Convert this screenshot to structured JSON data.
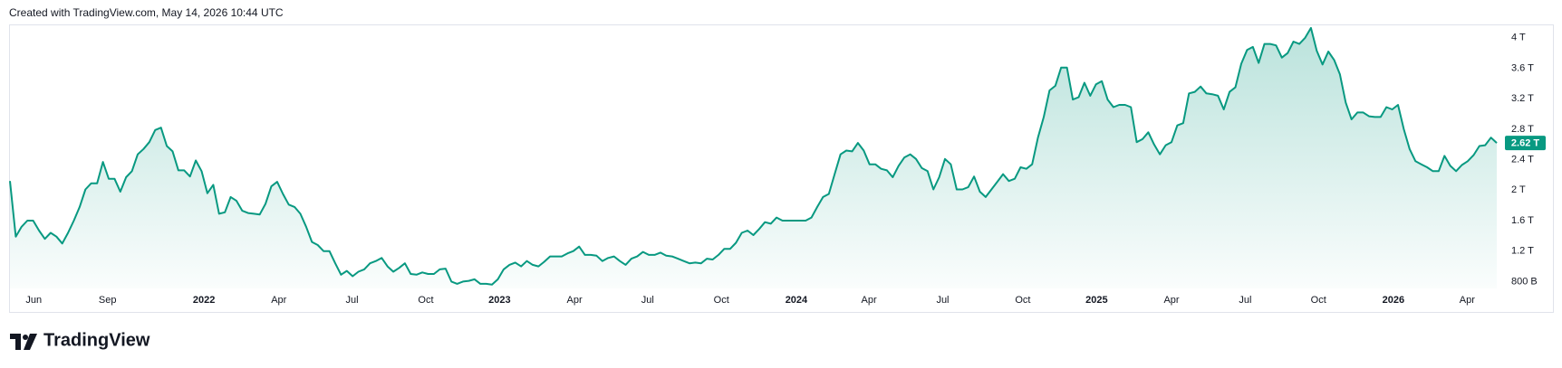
{
  "header": {
    "created": "Created with TradingView.com, May 14, 2026 10:44 UTC"
  },
  "chart_data": {
    "type": "area",
    "series": [
      {
        "color": "#089981",
        "values": [
          2.12,
          1.39,
          1.52,
          1.6,
          1.6,
          1.47,
          1.36,
          1.44,
          1.39,
          1.3,
          1.44,
          1.6,
          1.78,
          2.01,
          2.09,
          2.09,
          2.37,
          2.15,
          2.15,
          1.98,
          2.17,
          2.25,
          2.47,
          2.54,
          2.63,
          2.79,
          2.82,
          2.58,
          2.51,
          2.26,
          2.26,
          2.18,
          2.39,
          2.25,
          1.96,
          2.07,
          1.69,
          1.71,
          1.91,
          1.86,
          1.73,
          1.7,
          1.69,
          1.68,
          1.82,
          2.05,
          2.11,
          1.95,
          1.81,
          1.78,
          1.69,
          1.52,
          1.32,
          1.28,
          1.2,
          1.2,
          1.04,
          0.89,
          0.94,
          0.87,
          0.93,
          0.96,
          1.04,
          1.07,
          1.11,
          1.0,
          0.93,
          0.98,
          1.04,
          0.9,
          0.89,
          0.92,
          0.9,
          0.9,
          0.96,
          0.97,
          0.8,
          0.77,
          0.8,
          0.81,
          0.83,
          0.77,
          0.77,
          0.76,
          0.83,
          0.96,
          1.02,
          1.05,
          1.0,
          1.07,
          1.02,
          1.0,
          1.06,
          1.13,
          1.13,
          1.13,
          1.17,
          1.2,
          1.26,
          1.15,
          1.15,
          1.14,
          1.07,
          1.11,
          1.13,
          1.07,
          1.02,
          1.1,
          1.13,
          1.19,
          1.15,
          1.15,
          1.18,
          1.14,
          1.13,
          1.1,
          1.07,
          1.04,
          1.05,
          1.04,
          1.1,
          1.09,
          1.15,
          1.23,
          1.23,
          1.31,
          1.44,
          1.47,
          1.41,
          1.49,
          1.58,
          1.56,
          1.64,
          1.6,
          1.6,
          1.6,
          1.6,
          1.6,
          1.64,
          1.78,
          1.91,
          1.95,
          2.21,
          2.47,
          2.52,
          2.51,
          2.62,
          2.52,
          2.34,
          2.34,
          2.28,
          2.26,
          2.17,
          2.32,
          2.43,
          2.47,
          2.41,
          2.29,
          2.25,
          2.01,
          2.17,
          2.41,
          2.34,
          2.01,
          2.01,
          2.04,
          2.18,
          1.98,
          1.91,
          2.01,
          2.11,
          2.21,
          2.12,
          2.15,
          2.3,
          2.28,
          2.34,
          2.69,
          2.96,
          3.31,
          3.37,
          3.61,
          3.61,
          3.19,
          3.22,
          3.41,
          3.24,
          3.39,
          3.43,
          3.19,
          3.09,
          3.12,
          3.12,
          3.09,
          2.63,
          2.67,
          2.76,
          2.6,
          2.47,
          2.59,
          2.63,
          2.85,
          2.88,
          3.27,
          3.29,
          3.36,
          3.27,
          3.26,
          3.24,
          3.06,
          3.29,
          3.35,
          3.66,
          3.84,
          3.88,
          3.67,
          3.92,
          3.92,
          3.9,
          3.74,
          3.8,
          3.95,
          3.92,
          4.0,
          4.13,
          3.83,
          3.65,
          3.82,
          3.71,
          3.52,
          3.15,
          2.93,
          3.02,
          3.02,
          2.97,
          2.96,
          2.96,
          3.09,
          3.06,
          3.12,
          2.8,
          2.54,
          2.38,
          2.34,
          2.3,
          2.25,
          2.25,
          2.45,
          2.32,
          2.25,
          2.33,
          2.38,
          2.46,
          2.58,
          2.59,
          2.69,
          2.62
        ]
      }
    ],
    "xlim": [
      0,
      256
    ],
    "xticks": [
      {
        "value": 4.1,
        "label": "Jun"
      },
      {
        "value": 16.8,
        "label": "Sep"
      },
      {
        "value": 33.4,
        "label": "2022"
      },
      {
        "value": 46.3,
        "label": "Apr"
      },
      {
        "value": 58.9,
        "label": "Jul"
      },
      {
        "value": 71.6,
        "label": "Oct"
      },
      {
        "value": 84.3,
        "label": "2023"
      },
      {
        "value": 97.2,
        "label": "Apr"
      },
      {
        "value": 109.8,
        "label": "Jul"
      },
      {
        "value": 122.5,
        "label": "Oct"
      },
      {
        "value": 135.4,
        "label": "2024"
      },
      {
        "value": 147.9,
        "label": "Apr"
      },
      {
        "value": 160.6,
        "label": "Jul"
      },
      {
        "value": 174.4,
        "label": "Oct"
      },
      {
        "value": 187.1,
        "label": "2025"
      },
      {
        "value": 200.0,
        "label": "Apr"
      },
      {
        "value": 212.7,
        "label": "Jul"
      },
      {
        "value": 225.3,
        "label": "Oct"
      },
      {
        "value": 238.2,
        "label": "2026"
      },
      {
        "value": 250.9,
        "label": "Apr"
      }
    ],
    "ylim": [
      0.71,
      4.17
    ],
    "yticks": [
      {
        "value": 0.8,
        "label": "800 B"
      },
      {
        "value": 1.2,
        "label": "1.2 T"
      },
      {
        "value": 1.6,
        "label": "1.6 T"
      },
      {
        "value": 2,
        "label": "2 T"
      },
      {
        "value": 2.4,
        "label": "2.4 T"
      },
      {
        "value": 2.8,
        "label": "2.8 T"
      },
      {
        "value": 3.2,
        "label": "3.2 T"
      },
      {
        "value": 3.6,
        "label": "3.6 T"
      },
      {
        "value": 4,
        "label": "4 T"
      }
    ],
    "last_price": {
      "value": 2.62,
      "label": "2.62 T"
    }
  },
  "footer": {
    "brand": "TradingView"
  }
}
